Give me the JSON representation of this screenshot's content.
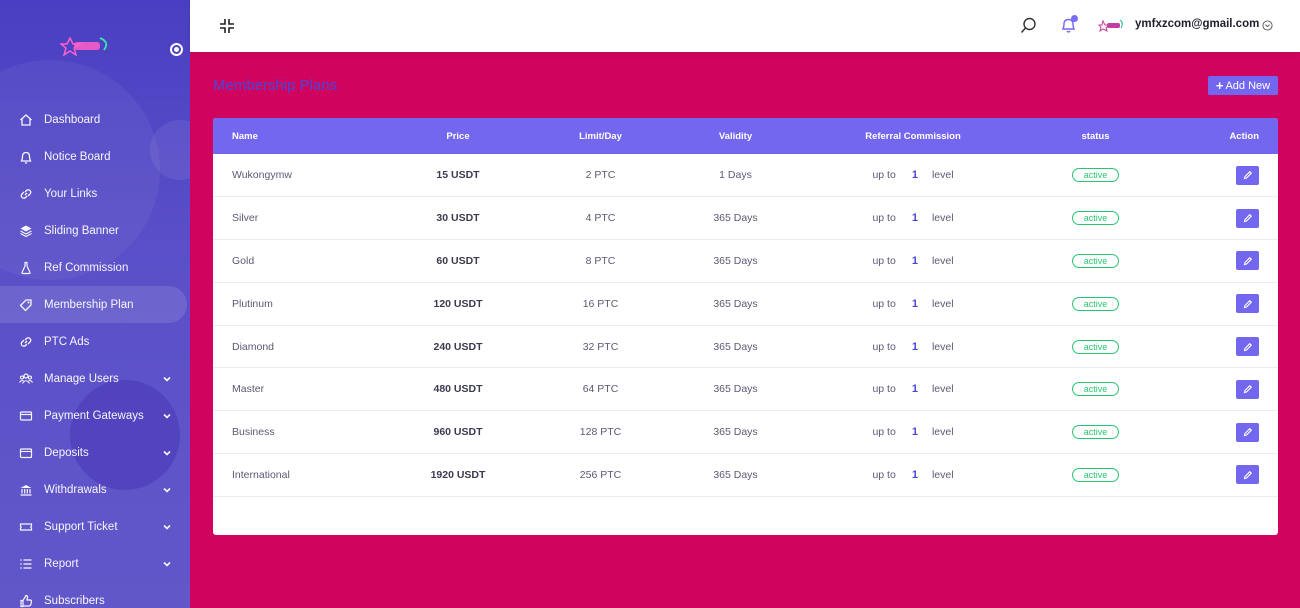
{
  "sidebar": {
    "items": [
      {
        "label": "Dashboard",
        "icon": "home-icon",
        "caret": false,
        "active": false
      },
      {
        "label": "Notice Board",
        "icon": "bell-icon",
        "caret": false,
        "active": false
      },
      {
        "label": "Your Links",
        "icon": "link-icon",
        "caret": false,
        "active": false
      },
      {
        "label": "Sliding Banner",
        "icon": "layers-icon",
        "caret": false,
        "active": false
      },
      {
        "label": "Ref Commission",
        "icon": "flask-icon",
        "caret": false,
        "active": false
      },
      {
        "label": "Membership Plan",
        "icon": "tag-icon",
        "caret": false,
        "active": true
      },
      {
        "label": "PTC Ads",
        "icon": "link-icon",
        "caret": false,
        "active": false
      },
      {
        "label": "Manage Users",
        "icon": "users-icon",
        "caret": true,
        "active": false
      },
      {
        "label": "Payment Gateways",
        "icon": "credit-card-icon",
        "caret": true,
        "active": false
      },
      {
        "label": "Deposits",
        "icon": "wallet-icon",
        "caret": true,
        "active": false
      },
      {
        "label": "Withdrawals",
        "icon": "bank-icon",
        "caret": true,
        "active": false
      },
      {
        "label": "Support Ticket",
        "icon": "ticket-icon",
        "caret": true,
        "active": false
      },
      {
        "label": "Report",
        "icon": "list-icon",
        "caret": true,
        "active": false
      },
      {
        "label": "Subscribers",
        "icon": "thumbs-up-icon",
        "caret": false,
        "active": false
      }
    ]
  },
  "topbar": {
    "user_email": "ymfxzcom@gmail.com"
  },
  "page": {
    "title": "Membership Plans",
    "add_button_label": "Add New"
  },
  "table": {
    "headers": {
      "name": "Name",
      "price": "Price",
      "limit": "Limit/Day",
      "validity": "Validity",
      "referral": "Referral Commission",
      "status": "status",
      "action": "Action"
    },
    "rows": [
      {
        "name": "Wukongymw",
        "price": "15 USDT",
        "limit": "2 PTC",
        "validity": "1 Days",
        "ref_prefix": "up to",
        "ref_level": "1",
        "ref_suffix": "level",
        "status": "active"
      },
      {
        "name": "Silver",
        "price": "30 USDT",
        "limit": "4 PTC",
        "validity": "365 Days",
        "ref_prefix": "up to",
        "ref_level": "1",
        "ref_suffix": "level",
        "status": "active"
      },
      {
        "name": "Gold",
        "price": "60 USDT",
        "limit": "8 PTC",
        "validity": "365 Days",
        "ref_prefix": "up to",
        "ref_level": "1",
        "ref_suffix": "level",
        "status": "active"
      },
      {
        "name": "Plutinum",
        "price": "120 USDT",
        "limit": "16 PTC",
        "validity": "365 Days",
        "ref_prefix": "up to",
        "ref_level": "1",
        "ref_suffix": "level",
        "status": "active"
      },
      {
        "name": "Diamond",
        "price": "240 USDT",
        "limit": "32 PTC",
        "validity": "365 Days",
        "ref_prefix": "up to",
        "ref_level": "1",
        "ref_suffix": "level",
        "status": "active"
      },
      {
        "name": "Master",
        "price": "480 USDT",
        "limit": "64 PTC",
        "validity": "365 Days",
        "ref_prefix": "up to",
        "ref_level": "1",
        "ref_suffix": "level",
        "status": "active"
      },
      {
        "name": "Business",
        "price": "960 USDT",
        "limit": "128 PTC",
        "validity": "365 Days",
        "ref_prefix": "up to",
        "ref_level": "1",
        "ref_suffix": "level",
        "status": "active"
      },
      {
        "name": "International",
        "price": "1920 USDT",
        "limit": "256 PTC",
        "validity": "365 Days",
        "ref_prefix": "up to",
        "ref_level": "1",
        "ref_suffix": "level",
        "status": "active"
      }
    ]
  },
  "colors": {
    "page_background": "#d0045f",
    "sidebar": "#4a3fc2",
    "accent": "#7367f0",
    "status_active": "#28c76f",
    "title": "#4b45d6"
  }
}
